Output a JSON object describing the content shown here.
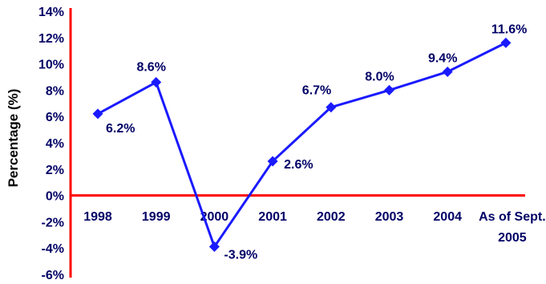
{
  "chart_data": {
    "type": "line",
    "title": "",
    "xlabel": "",
    "ylabel": "Percentage (%)",
    "ylim": [
      -6,
      14
    ],
    "yticks": [
      -6,
      -4,
      -2,
      0,
      2,
      4,
      6,
      8,
      10,
      12,
      14
    ],
    "ytick_labels": [
      "-6%",
      "-4%",
      "-2%",
      "0%",
      "2%",
      "4%",
      "6%",
      "8%",
      "10%",
      "12%",
      "14%"
    ],
    "categories": [
      [
        "1998"
      ],
      [
        "1999"
      ],
      [
        "2000"
      ],
      [
        "2001"
      ],
      [
        "2002"
      ],
      [
        "2003"
      ],
      [
        "2004"
      ],
      [
        "As of Sept.",
        "2005"
      ]
    ],
    "values": [
      6.2,
      8.6,
      -3.9,
      2.6,
      6.7,
      8.0,
      9.4,
      11.6
    ],
    "data_labels": [
      "6.2%",
      "8.6%",
      "-3.9%",
      "2.6%",
      "6.7%",
      "8.0%",
      "9.4%",
      "11.6%"
    ],
    "grid": false,
    "legend": "none",
    "colors": {
      "line": "#1a1aff",
      "marker": "#1a1aff",
      "axis": "#ff0000",
      "text": "#000066"
    }
  }
}
